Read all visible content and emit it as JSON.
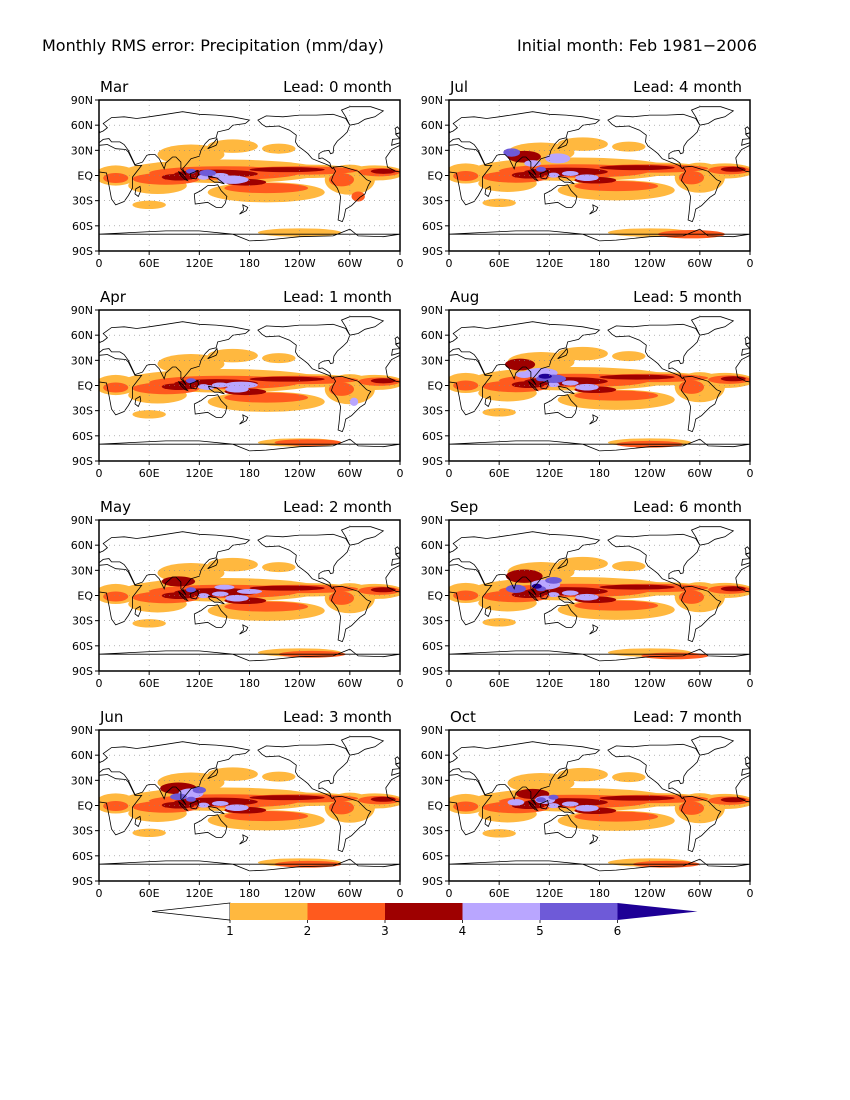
{
  "title_left": "Monthly RMS error: Precipitation (mm/day)",
  "title_right": "Initial month: Feb 1981−2006",
  "lat_ticks": [
    "90N",
    "60N",
    "30N",
    "EQ",
    "30S",
    "60S",
    "90S"
  ],
  "lon_ticks": [
    "0",
    "60E",
    "120E",
    "180",
    "120W",
    "60W",
    "0"
  ],
  "panels": [
    {
      "month": "Mar",
      "lead": "Lead: 0 month"
    },
    {
      "month": "Jul",
      "lead": "Lead: 4 month"
    },
    {
      "month": "Apr",
      "lead": "Lead: 1 month"
    },
    {
      "month": "Aug",
      "lead": "Lead: 5 month"
    },
    {
      "month": "May",
      "lead": "Lead: 2 month"
    },
    {
      "month": "Sep",
      "lead": "Lead: 6 month"
    },
    {
      "month": "Jun",
      "lead": "Lead: 3 month"
    },
    {
      "month": "Oct",
      "lead": "Lead: 7 month"
    }
  ],
  "colorbar": {
    "labels": [
      "1",
      "2",
      "3",
      "4",
      "5",
      "6"
    ],
    "colors": [
      "#ffffff",
      "#ffb83f",
      "#ff5a1e",
      "#9e0000",
      "#b9a6ff",
      "#6e5ad8",
      "#1e0096"
    ],
    "units": "mm/day"
  }
}
